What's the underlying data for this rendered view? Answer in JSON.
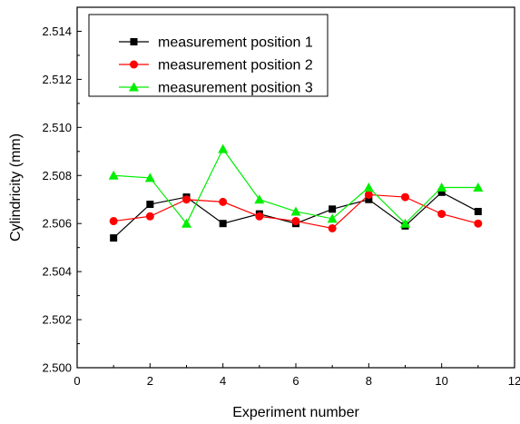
{
  "chart_data": {
    "type": "line",
    "xlabel": "Experiment number",
    "ylabel": "Cylindricity (mm)",
    "xlim": [
      0,
      12
    ],
    "ylim": [
      2.5,
      2.515
    ],
    "x_ticks": [
      "0",
      "2",
      "4",
      "6",
      "8",
      "10",
      "12"
    ],
    "y_ticks": [
      "2.500",
      "2.502",
      "2.504",
      "2.506",
      "2.508",
      "2.510",
      "2.512",
      "2.514"
    ],
    "x": [
      1,
      2,
      3,
      4,
      5,
      6,
      7,
      8,
      9,
      10,
      11
    ],
    "grid": false,
    "legend_position": "top-left",
    "series": [
      {
        "name": "measurement position 1",
        "color": "#000000",
        "marker": "square",
        "values": [
          2.5054,
          2.5068,
          2.5071,
          2.506,
          2.5064,
          2.506,
          2.5066,
          2.507,
          2.5059,
          2.5073,
          2.5065
        ]
      },
      {
        "name": "measurement position 2",
        "color": "#ff0000",
        "marker": "circle",
        "values": [
          2.5061,
          2.5063,
          2.507,
          2.5069,
          2.5063,
          2.5061,
          2.5058,
          2.5072,
          2.5071,
          2.5064,
          2.506
        ]
      },
      {
        "name": "measurement position 3",
        "color": "#00ee00",
        "marker": "triangle",
        "values": [
          2.508,
          2.5079,
          2.506,
          2.5091,
          2.507,
          2.5065,
          2.5062,
          2.5075,
          2.506,
          2.5075,
          2.5075
        ]
      }
    ]
  }
}
